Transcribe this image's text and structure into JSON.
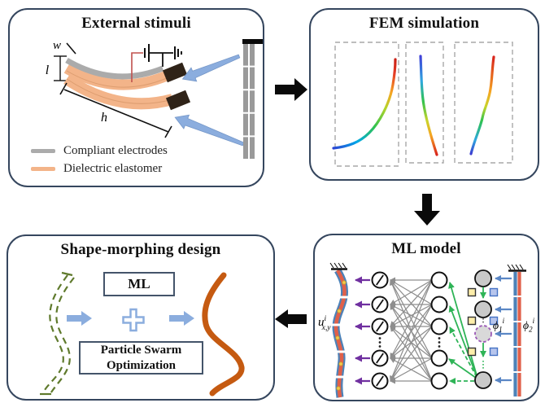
{
  "figure": {
    "panels": {
      "external_stimuli": {
        "title": "External stimuli",
        "dims": {
          "w": "w",
          "l": "l",
          "h": "h"
        },
        "legend": [
          {
            "label": "Compliant electrodes",
            "color": "#ababab"
          },
          {
            "label": "Dielectric elastomer",
            "color": "#f3b489"
          }
        ]
      },
      "fem_simulation": {
        "title": "FEM simulation"
      },
      "shape_morphing": {
        "title": "Shape-morphing design",
        "ml_label": "ML",
        "pso_line1": "Particle Swarm",
        "pso_line2": "Optimization"
      },
      "ml_model": {
        "title": "ML model",
        "u_label": {
          "base": "u",
          "sup": "i",
          "sub": "x,y"
        },
        "phi1": {
          "base": "ϕ",
          "sub": "1",
          "sup": "i"
        },
        "phi2": {
          "base": "ϕ",
          "sub": "2",
          "sup": "i"
        }
      }
    },
    "colors": {
      "panel_border": "#35465e",
      "flow_arrow_black": "#0a0a0a",
      "stimuli_arrow_blue": "#8badde",
      "electrode_gray": "#ababab",
      "elastomer_orange": "#f3b489",
      "electrode_tip_brown": "#2f2318",
      "target_shape_green": "#5f7a2c",
      "morphed_shape_orange": "#c55a11",
      "nn_link_gray": "#8e8e8e",
      "nn_output_purple": "#7030a0",
      "nn_feedback_green": "#2fb457",
      "nn_input_blue": "#5b87c5",
      "strip_blue": "#4d82b8",
      "strip_red": "#e0604a"
    }
  }
}
